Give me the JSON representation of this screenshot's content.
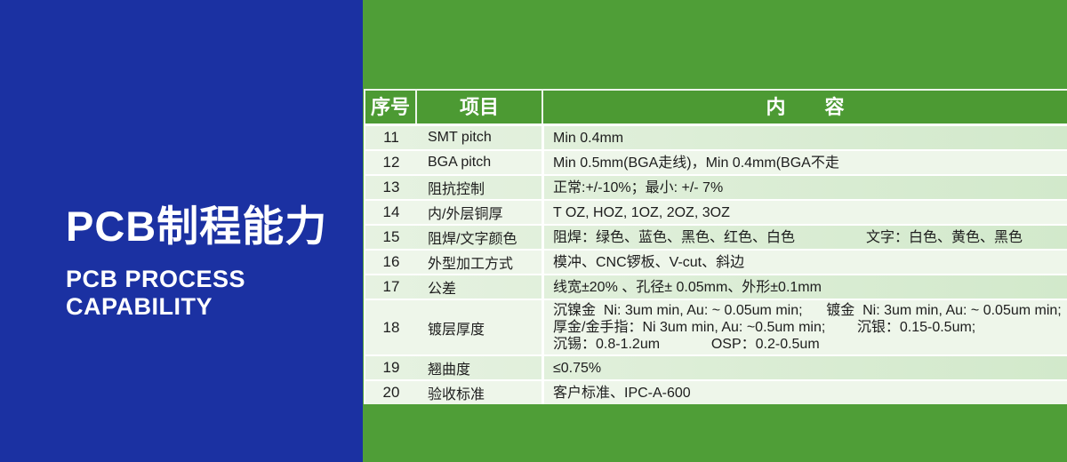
{
  "colors": {
    "left_panel_blue": "#1b31a2",
    "right_panel_green": "#4f9e37",
    "header_green": "#4c9a33",
    "row_odd_green": "#d2e9cb",
    "row_even_pale": "#eef6ea",
    "title_text": "#ffffff",
    "body_text": "#1d1d1d"
  },
  "left_panel": {
    "title": "PCB制程能力",
    "subtitle_line1": "PCB PROCESS",
    "subtitle_line2": "CAPABILITY"
  },
  "table": {
    "headers": {
      "no": "序号",
      "item": "项目",
      "content": "内　　容"
    },
    "rows": [
      {
        "no": "11",
        "item": "SMT pitch",
        "content": "Min 0.4mm"
      },
      {
        "no": "12",
        "item": "BGA pitch",
        "content": "Min 0.5mm(BGA走线)，Min 0.4mm(BGA不走"
      },
      {
        "no": "13",
        "item": "阻抗控制",
        "content": "正常:+/-10%；最小: +/- 7%"
      },
      {
        "no": "14",
        "item": "内/外层铜厚",
        "content": "T OZ, HOZ, 1OZ, 2OZ, 3OZ"
      },
      {
        "no": "15",
        "item": "阻焊/文字颜色",
        "content": "阻焊：绿色、蓝色、黑色、红色、白色                  文字：白色、黄色、黑色"
      },
      {
        "no": "16",
        "item": "外型加工方式",
        "content": "模冲、CNC锣板、V-cut、斜边"
      },
      {
        "no": "17",
        "item": "公差",
        "content": "线宽±20% 、孔径± 0.05mm、外形±0.1mm"
      },
      {
        "no": "18",
        "item": "镀层厚度",
        "content": "沉镍金  Ni: 3um min, Au: ~ 0.05um min;      镀金  Ni: 3um min, Au: ~ 0.05um min;\n厚金/金手指：Ni 3um min, Au: ~0.5um min;        沉银：0.15-0.5um;\n沉锡：0.8-1.2um             OSP：0.2-0.5um"
      },
      {
        "no": "19",
        "item": "翘曲度",
        "content": "≤0.75%"
      },
      {
        "no": "20",
        "item": "验收标准",
        "content": "客户标准、IPC-A-600"
      }
    ]
  }
}
